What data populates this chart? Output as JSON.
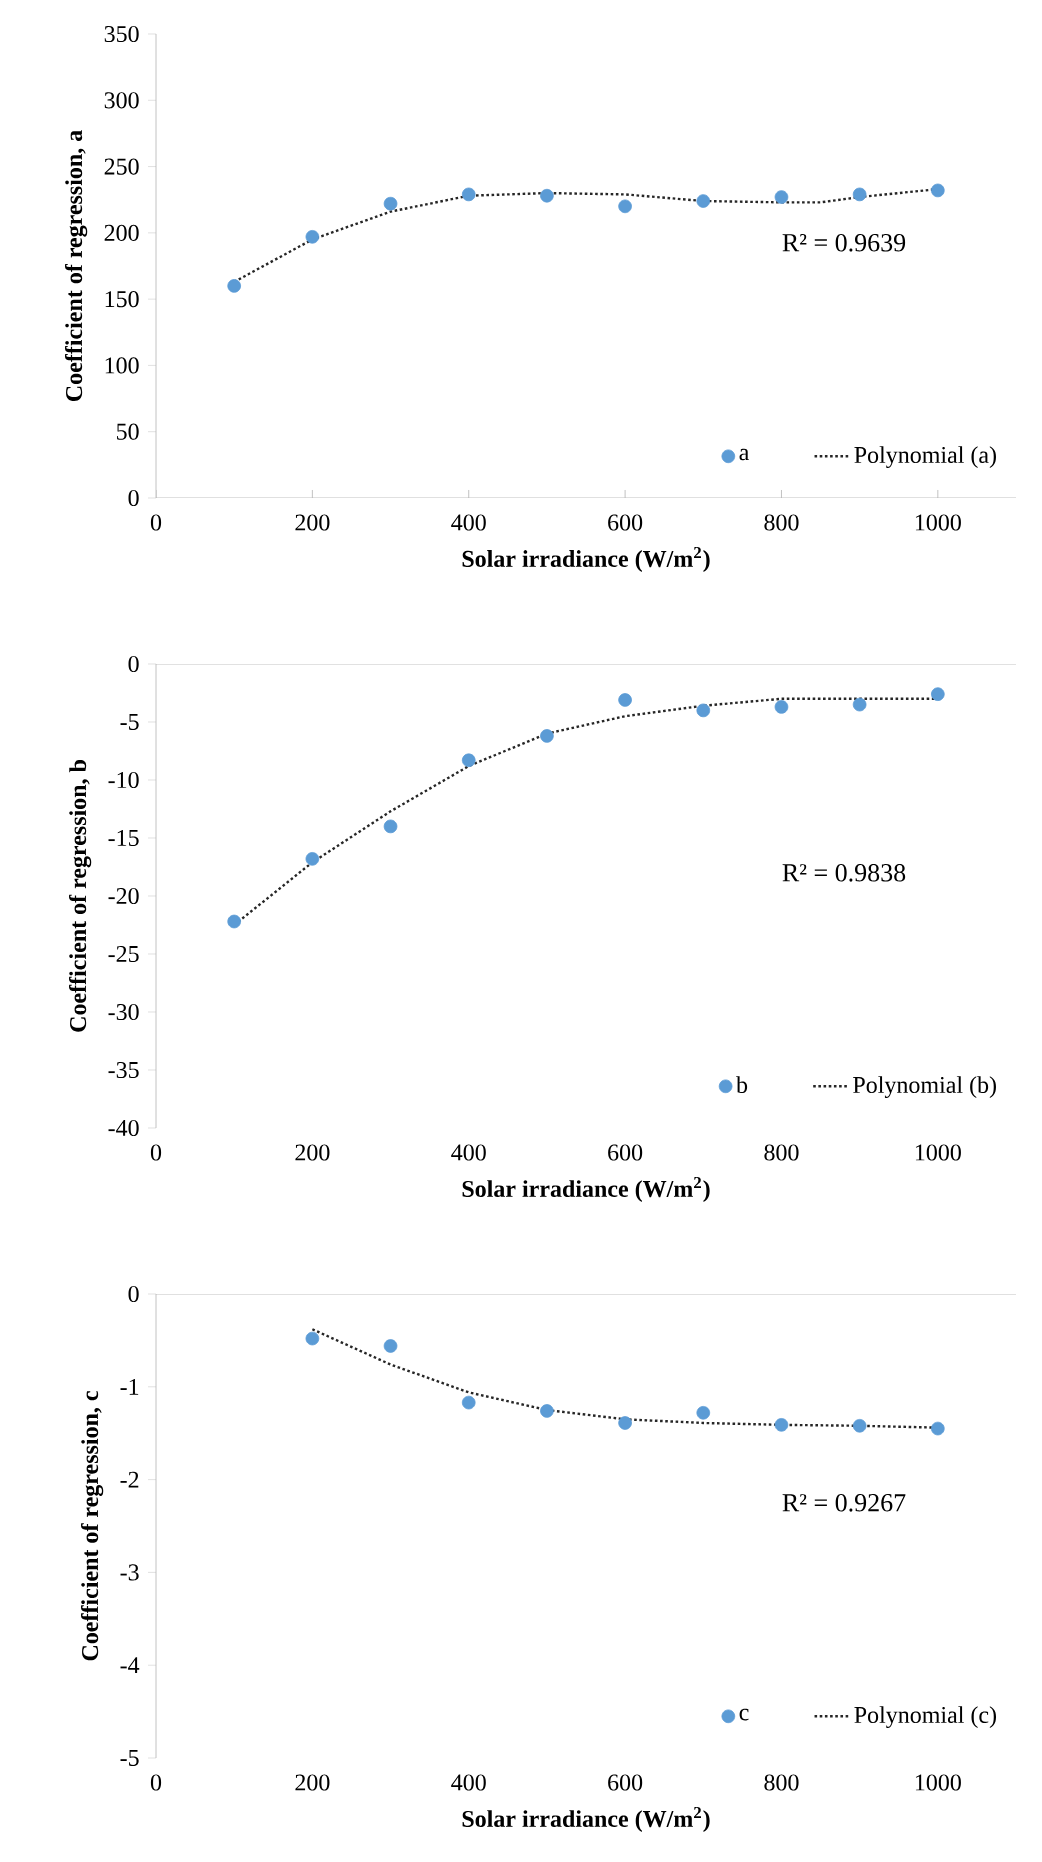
{
  "chart_data": [
    {
      "type": "scatter",
      "xlabel": "Solar irradiance (W/m$^{2}$)",
      "ylabel": "Coefficient of regression, a",
      "annotations": [
        "R² = 0.9639"
      ],
      "xlim": [
        0,
        1100
      ],
      "xticks": [
        0,
        200,
        400,
        600,
        800,
        1000
      ],
      "ylim": [
        0,
        350
      ],
      "yticks": [
        0,
        50,
        100,
        150,
        200,
        250,
        300,
        350
      ],
      "legend": "bottom right",
      "series": [
        {
          "name": "a",
          "marker": "circle",
          "color": "#5b9bd5",
          "x": [
            100,
            200,
            300,
            400,
            500,
            600,
            700,
            800,
            900,
            1000
          ],
          "values": [
            160,
            197,
            222,
            229,
            228,
            220,
            224,
            227,
            229,
            232
          ]
        },
        {
          "name": "Polynomial (a)",
          "type": "line",
          "line_style": "dotted",
          "color": "#262626",
          "x": [
            100,
            200,
            300,
            400,
            500,
            600,
            700,
            800,
            850,
            900,
            1000
          ],
          "values": [
            163,
            195,
            216,
            228,
            230,
            229,
            224,
            223,
            223,
            227,
            233
          ]
        }
      ]
    },
    {
      "type": "scatter",
      "xlabel": "Solar irradiance (W/m$^{2}$)",
      "ylabel": "Coefficient of regression, b",
      "annotations": [
        "R² = 0.9838"
      ],
      "xlim": [
        0,
        1100
      ],
      "xticks": [
        0,
        200,
        400,
        600,
        800,
        1000
      ],
      "ylim": [
        -40,
        0
      ],
      "yticks": [
        -40,
        -35,
        -30,
        -25,
        -20,
        -15,
        -10,
        -5,
        0
      ],
      "legend": "bottom right",
      "series": [
        {
          "name": "b",
          "marker": "circle",
          "color": "#5b9bd5",
          "x": [
            100,
            200,
            300,
            400,
            500,
            600,
            700,
            800,
            900,
            1000
          ],
          "values": [
            -22.2,
            -16.8,
            -14.0,
            -8.3,
            -6.2,
            -3.1,
            -4.0,
            -3.7,
            -3.5,
            -2.6
          ]
        },
        {
          "name": "Polynomial (b)",
          "type": "line",
          "line_style": "dotted",
          "color": "#262626",
          "x": [
            100,
            200,
            300,
            400,
            500,
            600,
            700,
            800,
            900,
            1000
          ],
          "values": [
            -22.5,
            -17.1,
            -12.7,
            -8.8,
            -6.0,
            -4.5,
            -3.6,
            -3.0,
            -3.0,
            -3.0
          ]
        }
      ]
    },
    {
      "type": "scatter",
      "xlabel": "Solar irradiance (W/m$^{2}$)",
      "ylabel": "Coefficient of regression, c",
      "annotations": [
        "R² = 0.9267"
      ],
      "xlim": [
        0,
        1100
      ],
      "xticks": [
        0,
        200,
        400,
        600,
        800,
        1000
      ],
      "ylim": [
        -5,
        0
      ],
      "yticks": [
        -5,
        -4,
        -3,
        -2,
        -1,
        0
      ],
      "legend": "bottom right",
      "series": [
        {
          "name": "c",
          "marker": "circle",
          "color": "#5b9bd5",
          "x": [
            200,
            300,
            400,
            500,
            600,
            700,
            800,
            900,
            1000
          ],
          "values": [
            -0.48,
            -0.56,
            -1.17,
            -1.26,
            -1.39,
            -1.28,
            -1.41,
            -1.42,
            -1.45
          ]
        },
        {
          "name": "Polynomial (c)",
          "type": "line",
          "line_style": "dotted",
          "color": "#262626",
          "x": [
            200,
            300,
            400,
            500,
            600,
            700,
            800,
            900,
            1000
          ],
          "values": [
            -0.38,
            -0.76,
            -1.06,
            -1.25,
            -1.35,
            -1.39,
            -1.41,
            -1.42,
            -1.44
          ]
        }
      ]
    }
  ]
}
